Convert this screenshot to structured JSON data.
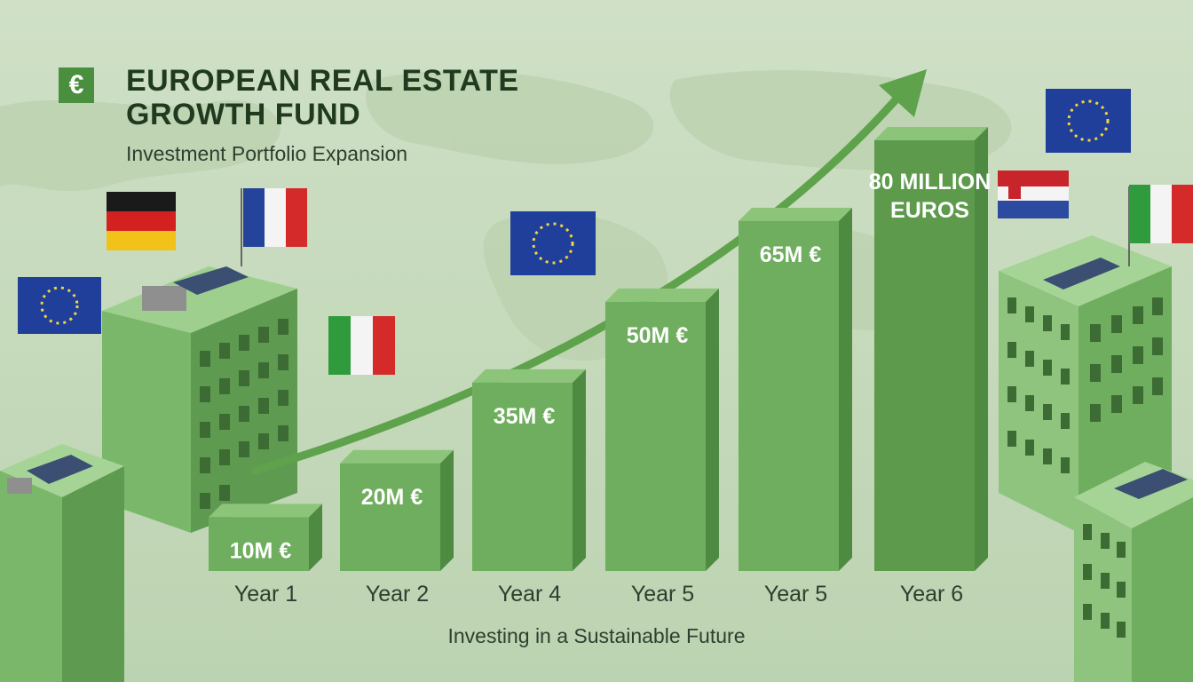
{
  "header": {
    "badge": "€",
    "title": "EUROPEAN REAL ESTATE GROWTH FUND",
    "subtitle": "Investment Portfolio Expansion"
  },
  "footer": {
    "text": "Investing in a Sustainable Future"
  },
  "colors": {
    "background": "#c9dcc0",
    "bar_front": "#6fae5e",
    "bar_top": "#8cc47a",
    "bar_side": "#4f8a42",
    "bar_highlight_front": "#5d9a4c",
    "arrow": "#5ea24c",
    "title": "#1f3a1f"
  },
  "flags": [
    "eu-flag",
    "germany-flag",
    "france-flag",
    "italy-flag",
    "eu-flag",
    "eu-flag",
    "spain-netherlands-flag",
    "italy-flag"
  ],
  "chart_data": {
    "type": "bar",
    "categories": [
      "Year 1",
      "Year 2",
      "Year 4",
      "Year 5",
      "Year 5",
      "Year 6"
    ],
    "values": [
      10,
      20,
      35,
      50,
      65,
      80
    ],
    "data_labels": [
      "10M €",
      "20M €",
      "35M €",
      "50M €",
      "65M €",
      "80 MILLION EUROS"
    ],
    "ylim": [
      0,
      80
    ],
    "trend_arrow": "upward",
    "grid": false
  }
}
